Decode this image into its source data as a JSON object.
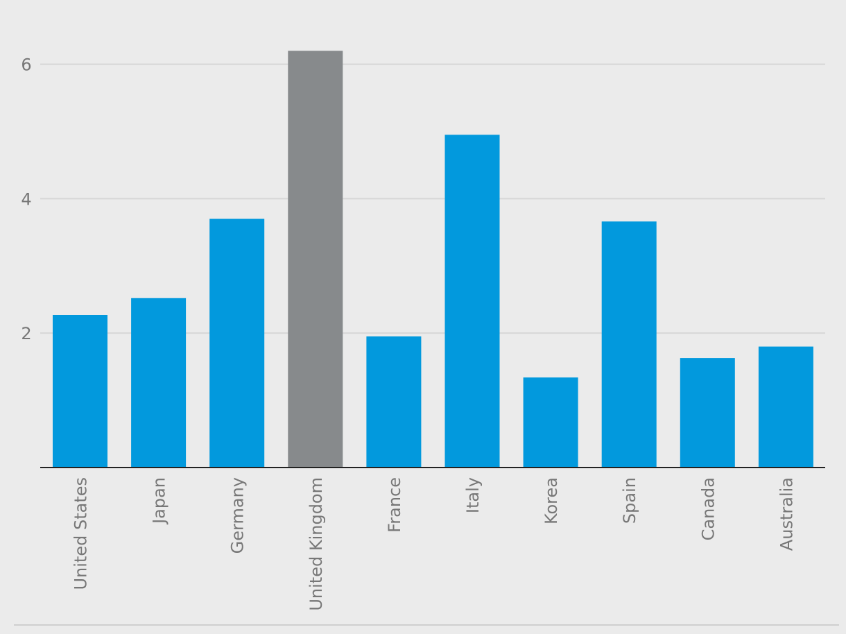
{
  "chart_data": {
    "type": "bar",
    "categories": [
      "United States",
      "Japan",
      "Germany",
      "United Kingdom",
      "France",
      "Italy",
      "Korea",
      "Spain",
      "Canada",
      "Australia"
    ],
    "values": [
      2.27,
      2.52,
      3.7,
      6.2,
      1.95,
      4.95,
      1.34,
      3.66,
      1.63,
      1.8
    ],
    "highlight_category": "United Kingdom",
    "title": "",
    "xlabel": "",
    "ylabel": "",
    "ylim": [
      0,
      6.5
    ],
    "yticks": [
      2,
      4,
      6
    ],
    "grid": true,
    "colors": {
      "bar": "#0299dd",
      "highlight": "#878a8c",
      "background": "#ebebeb"
    }
  }
}
